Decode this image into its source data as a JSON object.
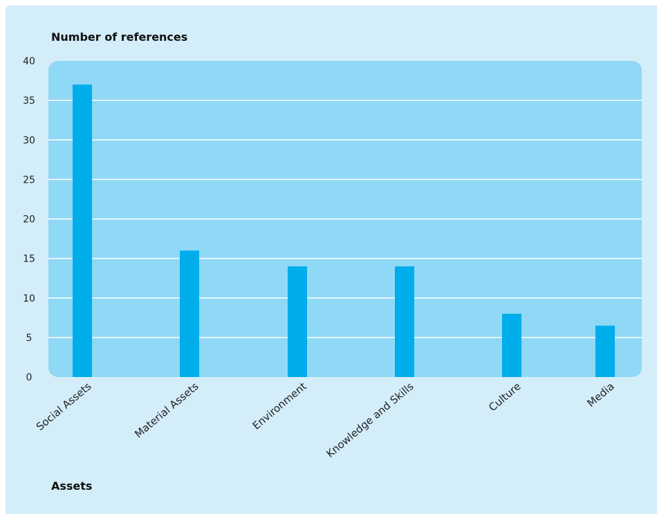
{
  "chart_data": {
    "type": "bar",
    "categories": [
      "Social Assets",
      "Material Assets",
      "Environment",
      "Knowledge and Skills",
      "Culture",
      "Media"
    ],
    "values": [
      37,
      16,
      14,
      14,
      8,
      6.5
    ],
    "ylabel": "Number of references",
    "xlabel": "Assets",
    "ylim": [
      0,
      40
    ],
    "yticks": [
      "0",
      "5",
      "10",
      "15",
      "20",
      "25",
      "30",
      "35",
      "40"
    ],
    "grid": true,
    "colors": {
      "background": "#d3edf9",
      "plot_area": "#8fd8f6",
      "bar": "#00adeb",
      "gridline": "#ffffff"
    }
  }
}
